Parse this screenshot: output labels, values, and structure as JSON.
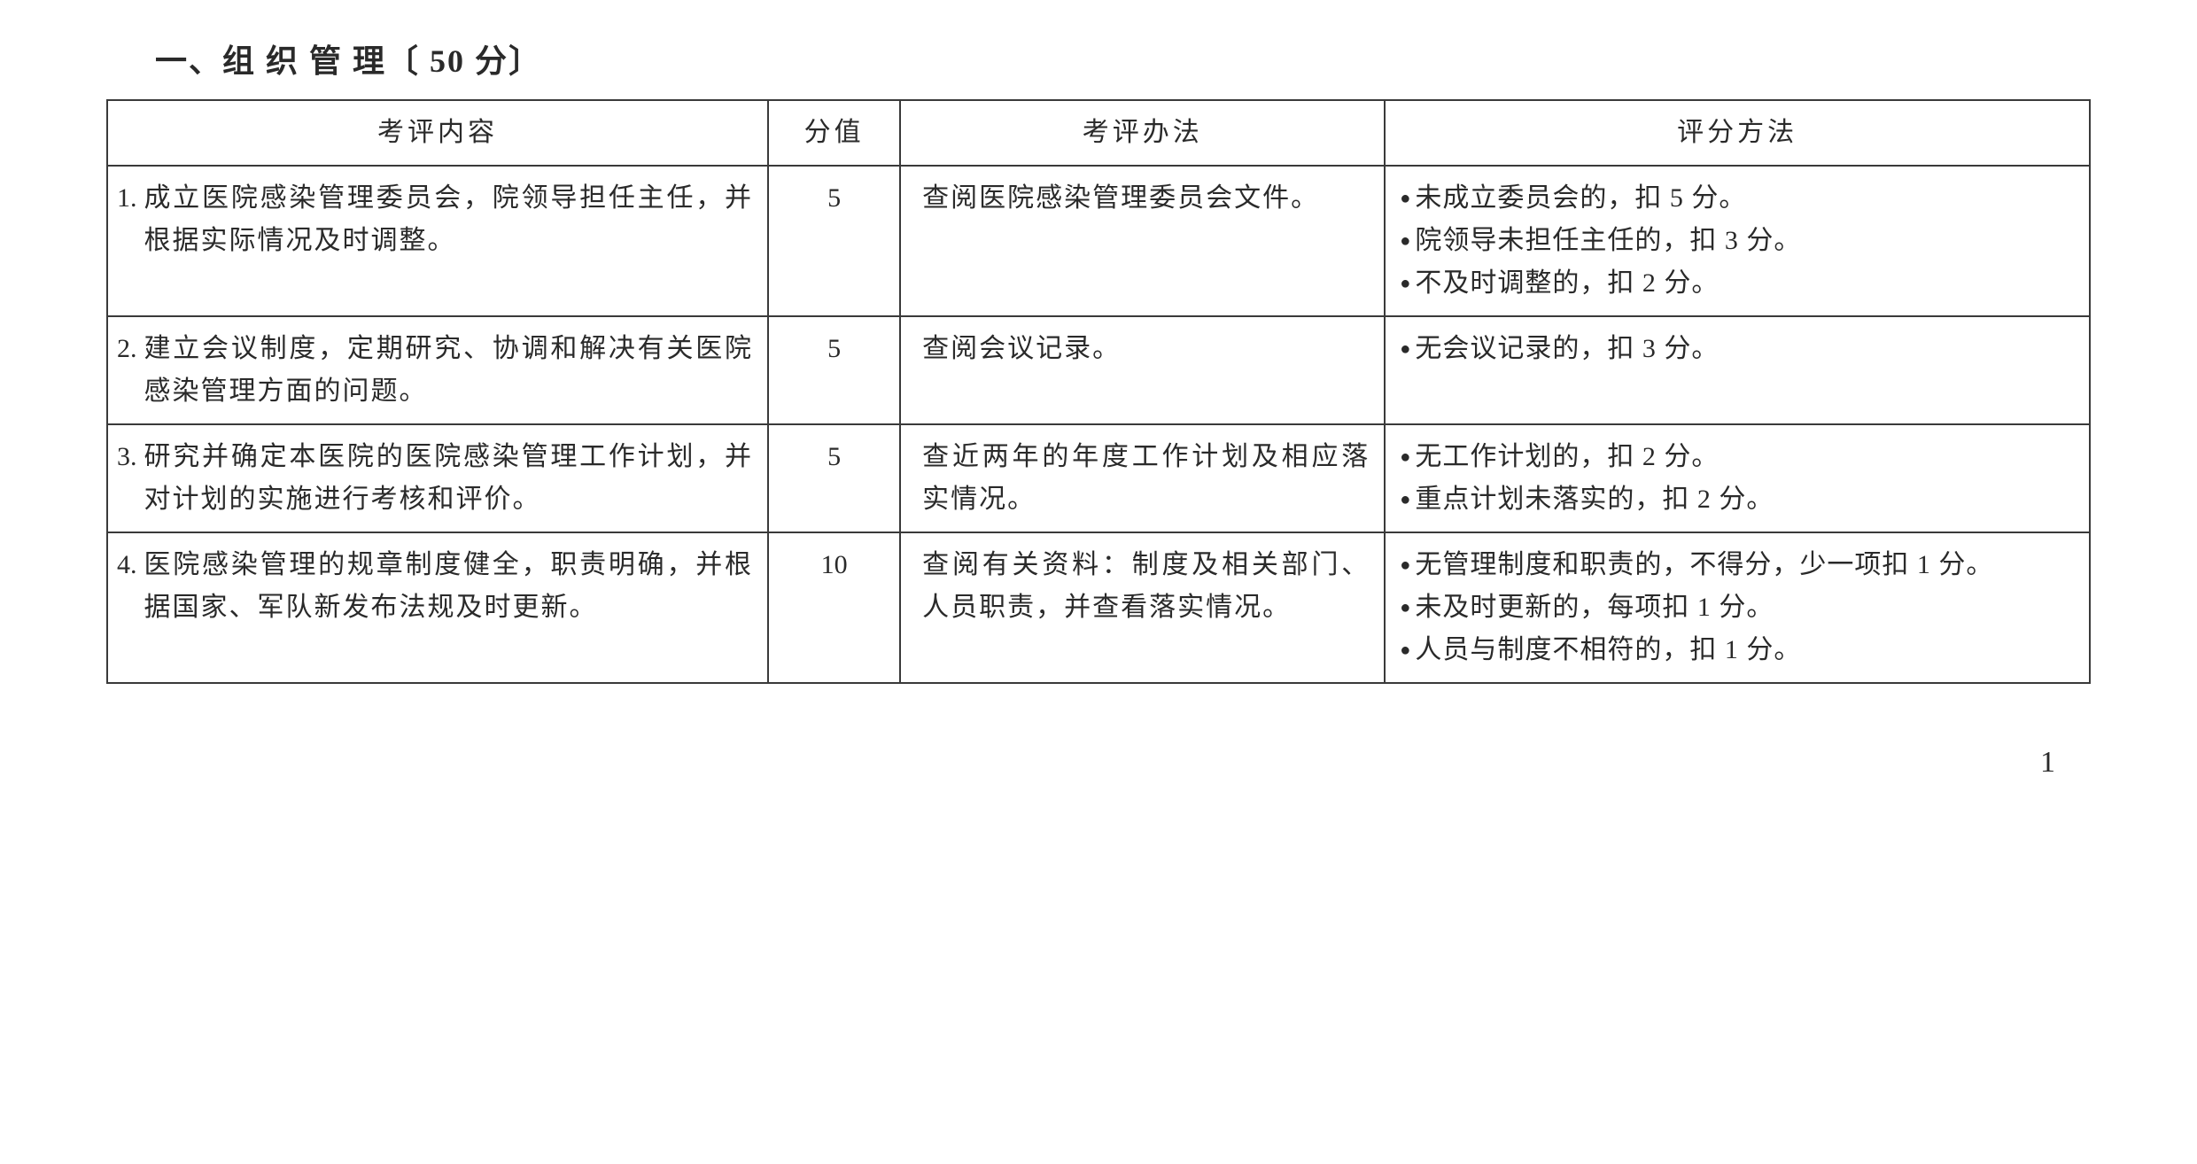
{
  "section": {
    "title_prefix": "一、组 织 管 理〔",
    "score_label": " 50 分",
    "title_suffix": "〕"
  },
  "table": {
    "headers": {
      "content": "考评内容",
      "score": "分值",
      "method": "考评办法",
      "scoring": "评分方法"
    },
    "rows": [
      {
        "num": "1.",
        "content": "成立医院感染管理委员会，院领导担任主任，并根据实际情况及时调整。",
        "score": "5",
        "method": "查阅医院感染管理委员会文件。",
        "scoring": [
          "未成立委员会的，扣 5 分。",
          "院领导未担任主任的，扣 3 分。",
          "不及时调整的，扣 2 分。"
        ]
      },
      {
        "num": "2.",
        "content": "建立会议制度，定期研究、协调和解决有关医院感染管理方面的问题。",
        "score": "5",
        "method": "查阅会议记录。",
        "scoring": [
          "无会议记录的，扣 3 分。"
        ]
      },
      {
        "num": "3.",
        "content": "研究并确定本医院的医院感染管理工作计划，并对计划的实施进行考核和评价。",
        "score": "5",
        "method": "查近两年的年度工作计划及相应落实情况。",
        "scoring": [
          "无工作计划的，扣 2 分。",
          "重点计划未落实的，扣 2 分。"
        ]
      },
      {
        "num": "4.",
        "content": "医院感染管理的规章制度健全，职责明确，并根据国家、军队新发布法规及时更新。",
        "score": "10",
        "method": "查阅有关资料：制度及相关部门、人员职责，并查看落实情况。",
        "scoring": [
          "无管理制度和职责的，不得分，少一项扣 1 分。",
          "未及时更新的，每项扣 1 分。",
          "人员与制度不相符的，扣 1 分。"
        ]
      }
    ]
  },
  "page_number": "1",
  "style": {
    "text_color": "#2a2a2a",
    "border_color": "#3a3a3a",
    "background_color": "#ffffff",
    "title_fontsize": 36,
    "cell_fontsize": 30,
    "pagenum_fontsize": 34
  }
}
